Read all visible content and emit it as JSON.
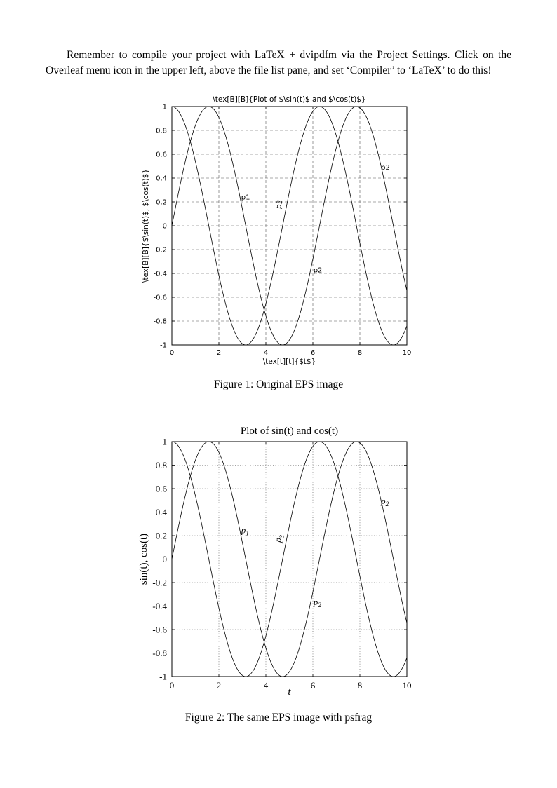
{
  "document": {
    "paragraph": "Remember to compile your project with LaTeX + dvipdfm via the Project Settings. Click on the Overleaf menu icon in the upper left, above the file list pane, and set ‘Compiler’ to ‘LaTeX’ to do this!"
  },
  "chart_data": [
    {
      "id": "fig1",
      "type": "line",
      "title": "\\tex[B][B]{Plot of $\\sin(t)$ and $\\cos(t)$}",
      "xlabel": "\\tex[t][t]{$t$}",
      "ylabel": "\\tex[B][B]{$\\sin(t)$, $\\cos(t)$}",
      "x_range": [
        0,
        10
      ],
      "y_range": [
        -1,
        1
      ],
      "x_ticks": [
        0,
        2,
        4,
        6,
        8,
        10
      ],
      "x_tick_labels": [
        "0",
        "2",
        "4",
        "6",
        "8",
        "10"
      ],
      "y_ticks": [
        1,
        0.8,
        0.6,
        0.4,
        0.2,
        0,
        -0.2,
        -0.4,
        -0.6,
        -0.8,
        -1
      ],
      "y_tick_labels": [
        "1",
        "0.8",
        "0.6",
        "0.4",
        "0.2",
        "0",
        "-0.2",
        "-0.4",
        "-0.6",
        "-0.8",
        "-1"
      ],
      "grid": "dashed",
      "legend": "none",
      "series": [
        {
          "name": "sin(t)",
          "fn": "sin"
        },
        {
          "name": "cos(t)",
          "fn": "cos"
        }
      ],
      "annotations": [
        {
          "text": "p1",
          "x": 2.95,
          "y": 0.22,
          "rotate": 0
        },
        {
          "text": "p3",
          "x": 4.62,
          "y": 0.14,
          "rotate": -78
        },
        {
          "text": "p2",
          "x": 6.02,
          "y": -0.39,
          "rotate": 0
        },
        {
          "text": "p2",
          "x": 8.9,
          "y": 0.47,
          "rotate": 0
        }
      ],
      "caption": "Figure 1: Original EPS image"
    },
    {
      "id": "fig2",
      "type": "line",
      "title": "Plot of sin(t) and cos(t)",
      "xlabel": "t",
      "ylabel": "sin(t), cos(t)",
      "x_range": [
        0,
        10
      ],
      "y_range": [
        -1,
        1
      ],
      "x_ticks": [
        0,
        2,
        4,
        6,
        8,
        10
      ],
      "x_tick_labels": [
        "0",
        "2",
        "4",
        "6",
        "8",
        "10"
      ],
      "y_ticks": [
        1,
        0.8,
        0.6,
        0.4,
        0.2,
        0,
        -0.2,
        -0.4,
        -0.6,
        -0.8,
        -1
      ],
      "y_tick_labels": [
        "1",
        "0.8",
        "0.6",
        "0.4",
        "0.2",
        "0",
        "-0.2",
        "-0.4",
        "-0.6",
        "-0.8",
        "-1"
      ],
      "grid": "dotted",
      "legend": "none",
      "series": [
        {
          "name": "sin(t)",
          "fn": "sin"
        },
        {
          "name": "cos(t)",
          "fn": "cos"
        }
      ],
      "annotations": [
        {
          "text": "p",
          "sub": "1",
          "x": 2.95,
          "y": 0.22,
          "rotate": 0
        },
        {
          "text": "p",
          "sub": "3",
          "x": 4.62,
          "y": 0.14,
          "rotate": -78
        },
        {
          "text": "p",
          "sub": "2",
          "x": 6.02,
          "y": -0.39,
          "rotate": 0
        },
        {
          "text": "p",
          "sub": "2",
          "x": 8.9,
          "y": 0.47,
          "rotate": 0
        }
      ],
      "caption": "Figure 2: The same EPS image with psfrag"
    }
  ]
}
